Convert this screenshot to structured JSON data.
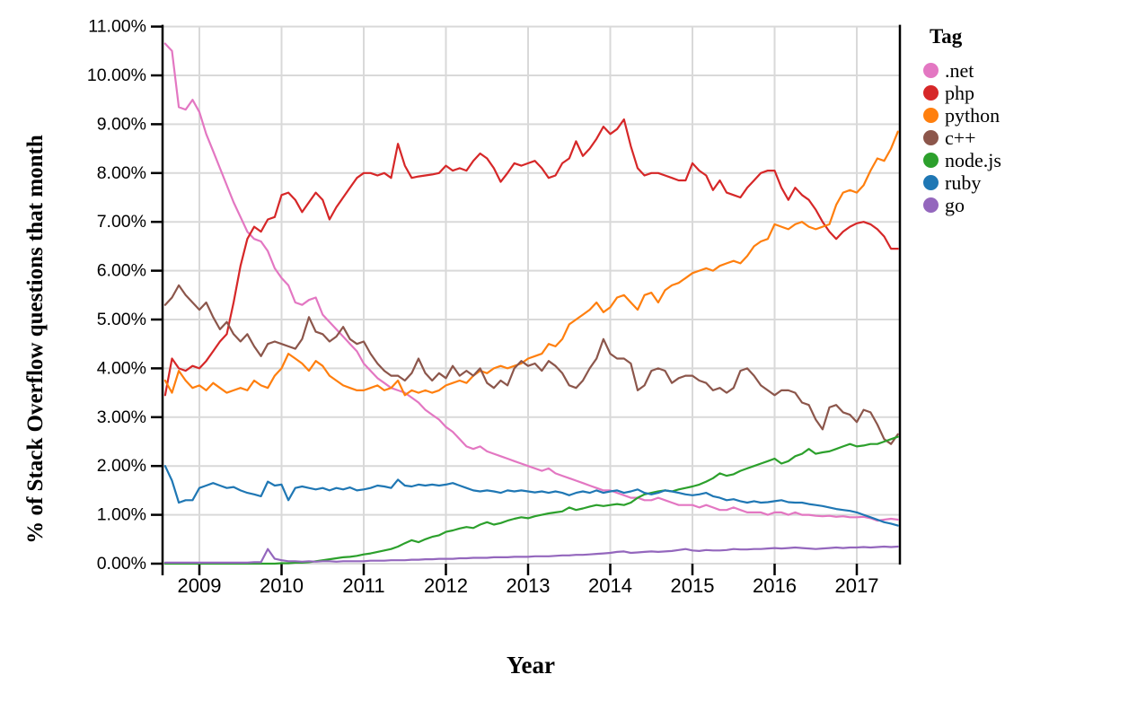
{
  "figure": {
    "y_axis_title": "% of Stack Overflow questions that month",
    "x_axis_title": "Year",
    "y_tick_labels": [
      "0.00%",
      "1.00%",
      "2.00%",
      "3.00%",
      "4.00%",
      "5.00%",
      "6.00%",
      "7.00%",
      "8.00%",
      "9.00%",
      "10.00%",
      "11.00%"
    ],
    "x_tick_labels": [
      "2009",
      "2010",
      "2011",
      "2012",
      "2013",
      "2014",
      "2015",
      "2016",
      "2017"
    ],
    "grid_color": "#d9d9d9",
    "axis_color": "#000000",
    "legend": {
      "title": "Tag",
      "items": [
        {
          "label": ".net",
          "color": "#e377c2"
        },
        {
          "label": "php",
          "color": "#d62728"
        },
        {
          "label": "python",
          "color": "#ff7f0e"
        },
        {
          "label": "c++",
          "color": "#8c564b"
        },
        {
          "label": "node.js",
          "color": "#2ca02c"
        },
        {
          "label": "ruby",
          "color": "#1f77b4"
        },
        {
          "label": "go",
          "color": "#9467bd"
        }
      ]
    }
  },
  "chart_data": {
    "type": "line",
    "title": "",
    "xlabel": "Year",
    "ylabel": "% of Stack Overflow questions that month",
    "xlim": [
      2008.583,
      2017.5
    ],
    "ylim": [
      0,
      11
    ],
    "grid": true,
    "legend_position": "right",
    "x_ticks": [
      2009,
      2010,
      2011,
      2012,
      2013,
      2014,
      2015,
      2016,
      2017
    ],
    "y_ticks": [
      0,
      1,
      2,
      3,
      4,
      5,
      6,
      7,
      8,
      9,
      10,
      11
    ],
    "y_unit": "percent",
    "x_start_year": 2008.5833,
    "x_step_years": 0.083333,
    "x_note": "monthly values, Aug 2008 through Jul 2017",
    "series": [
      {
        "name": ".net",
        "color": "#e377c2",
        "values": [
          10.65,
          10.5,
          9.35,
          9.3,
          9.5,
          9.25,
          8.8,
          8.45,
          8.1,
          7.75,
          7.4,
          7.1,
          6.8,
          6.65,
          6.6,
          6.4,
          6.05,
          5.85,
          5.7,
          5.35,
          5.3,
          5.4,
          5.45,
          5.1,
          4.95,
          4.8,
          4.65,
          4.5,
          4.35,
          4.1,
          3.95,
          3.8,
          3.7,
          3.6,
          3.55,
          3.5,
          3.4,
          3.3,
          3.15,
          3.05,
          2.95,
          2.8,
          2.7,
          2.55,
          2.4,
          2.35,
          2.4,
          2.3,
          2.25,
          2.2,
          2.15,
          2.1,
          2.05,
          2.0,
          1.95,
          1.9,
          1.95,
          1.85,
          1.8,
          1.75,
          1.7,
          1.65,
          1.6,
          1.55,
          1.5,
          1.5,
          1.45,
          1.4,
          1.35,
          1.35,
          1.3,
          1.3,
          1.35,
          1.3,
          1.25,
          1.2,
          1.2,
          1.2,
          1.15,
          1.2,
          1.15,
          1.1,
          1.1,
          1.15,
          1.1,
          1.05,
          1.05,
          1.05,
          1.0,
          1.05,
          1.05,
          1.0,
          1.05,
          1.0,
          1.0,
          0.98,
          0.97,
          0.98,
          0.96,
          0.97,
          0.95,
          0.95,
          0.96,
          0.93,
          0.88,
          0.9,
          0.92,
          0.9
        ]
      },
      {
        "name": "php",
        "color": "#d62728",
        "values": [
          3.45,
          4.2,
          4.0,
          3.95,
          4.05,
          4.0,
          4.15,
          4.35,
          4.55,
          4.7,
          5.35,
          6.1,
          6.65,
          6.9,
          6.8,
          7.05,
          7.1,
          7.55,
          7.6,
          7.45,
          7.2,
          7.4,
          7.6,
          7.45,
          7.05,
          7.3,
          7.5,
          7.7,
          7.9,
          8.0,
          8.0,
          7.95,
          8.0,
          7.9,
          8.6,
          8.15,
          7.9,
          7.93,
          7.95,
          7.97,
          8.0,
          8.15,
          8.05,
          8.1,
          8.05,
          8.25,
          8.4,
          8.3,
          8.1,
          7.82,
          8.0,
          8.2,
          8.15,
          8.2,
          8.25,
          8.1,
          7.9,
          7.95,
          8.2,
          8.3,
          8.65,
          8.35,
          8.5,
          8.7,
          8.95,
          8.8,
          8.9,
          9.1,
          8.55,
          8.1,
          7.95,
          8.0,
          8.0,
          7.95,
          7.9,
          7.85,
          7.85,
          8.2,
          8.05,
          7.95,
          7.65,
          7.85,
          7.6,
          7.55,
          7.5,
          7.7,
          7.85,
          8.0,
          8.05,
          8.05,
          7.7,
          7.45,
          7.7,
          7.55,
          7.45,
          7.25,
          7.0,
          6.8,
          6.65,
          6.8,
          6.9,
          6.97,
          7.0,
          6.95,
          6.85,
          6.7,
          6.45,
          6.45
        ]
      },
      {
        "name": "python",
        "color": "#ff7f0e",
        "values": [
          3.75,
          3.5,
          3.95,
          3.75,
          3.6,
          3.65,
          3.55,
          3.7,
          3.6,
          3.5,
          3.55,
          3.6,
          3.55,
          3.75,
          3.65,
          3.6,
          3.85,
          4.0,
          4.3,
          4.2,
          4.1,
          3.95,
          4.15,
          4.05,
          3.85,
          3.75,
          3.65,
          3.6,
          3.55,
          3.55,
          3.6,
          3.65,
          3.55,
          3.6,
          3.75,
          3.45,
          3.55,
          3.5,
          3.55,
          3.5,
          3.55,
          3.65,
          3.7,
          3.75,
          3.7,
          3.85,
          3.95,
          3.9,
          4.0,
          4.05,
          4.0,
          4.05,
          4.1,
          4.2,
          4.25,
          4.3,
          4.5,
          4.45,
          4.6,
          4.9,
          5.0,
          5.1,
          5.2,
          5.35,
          5.15,
          5.25,
          5.45,
          5.5,
          5.35,
          5.2,
          5.5,
          5.55,
          5.35,
          5.6,
          5.7,
          5.75,
          5.85,
          5.95,
          6.0,
          6.05,
          6.0,
          6.1,
          6.15,
          6.2,
          6.15,
          6.3,
          6.5,
          6.6,
          6.65,
          6.95,
          6.9,
          6.85,
          6.95,
          7.0,
          6.9,
          6.85,
          6.9,
          6.95,
          7.35,
          7.6,
          7.65,
          7.6,
          7.75,
          8.05,
          8.3,
          8.25,
          8.5,
          8.85
        ]
      },
      {
        "name": "c++",
        "color": "#8c564b",
        "values": [
          5.3,
          5.45,
          5.7,
          5.5,
          5.35,
          5.2,
          5.35,
          5.05,
          4.8,
          4.95,
          4.7,
          4.55,
          4.7,
          4.45,
          4.25,
          4.5,
          4.55,
          4.5,
          4.45,
          4.4,
          4.6,
          5.05,
          4.75,
          4.7,
          4.55,
          4.65,
          4.85,
          4.6,
          4.5,
          4.55,
          4.3,
          4.1,
          3.95,
          3.85,
          3.85,
          3.75,
          3.9,
          4.2,
          3.9,
          3.75,
          3.9,
          3.8,
          4.05,
          3.85,
          3.95,
          3.85,
          4.0,
          3.7,
          3.6,
          3.75,
          3.65,
          4.0,
          4.15,
          4.05,
          4.1,
          3.95,
          4.15,
          4.05,
          3.9,
          3.65,
          3.6,
          3.75,
          4.0,
          4.2,
          4.6,
          4.3,
          4.2,
          4.2,
          4.1,
          3.55,
          3.65,
          3.95,
          4.0,
          3.95,
          3.7,
          3.8,
          3.85,
          3.85,
          3.75,
          3.7,
          3.55,
          3.6,
          3.5,
          3.6,
          3.95,
          4.0,
          3.85,
          3.65,
          3.55,
          3.45,
          3.55,
          3.55,
          3.5,
          3.3,
          3.25,
          2.95,
          2.75,
          3.2,
          3.25,
          3.1,
          3.05,
          2.9,
          3.15,
          3.1,
          2.85,
          2.55,
          2.45,
          2.65
        ]
      },
      {
        "name": "node.js",
        "color": "#2ca02c",
        "values": [
          0,
          0,
          0,
          0,
          0,
          0,
          0,
          0,
          0,
          0,
          0,
          0,
          0,
          0,
          0,
          0,
          0,
          0.01,
          0.01,
          0.02,
          0.02,
          0.03,
          0.05,
          0.07,
          0.09,
          0.11,
          0.13,
          0.14,
          0.16,
          0.19,
          0.21,
          0.24,
          0.27,
          0.3,
          0.35,
          0.42,
          0.48,
          0.44,
          0.5,
          0.55,
          0.58,
          0.65,
          0.68,
          0.72,
          0.75,
          0.73,
          0.8,
          0.85,
          0.8,
          0.83,
          0.88,
          0.92,
          0.95,
          0.93,
          0.97,
          1.0,
          1.03,
          1.05,
          1.07,
          1.15,
          1.1,
          1.13,
          1.17,
          1.2,
          1.18,
          1.2,
          1.22,
          1.2,
          1.25,
          1.35,
          1.42,
          1.45,
          1.48,
          1.5,
          1.48,
          1.52,
          1.55,
          1.58,
          1.62,
          1.68,
          1.75,
          1.85,
          1.8,
          1.83,
          1.9,
          1.95,
          2.0,
          2.05,
          2.1,
          2.15,
          2.05,
          2.1,
          2.2,
          2.25,
          2.35,
          2.25,
          2.28,
          2.3,
          2.35,
          2.4,
          2.45,
          2.4,
          2.42,
          2.45,
          2.45,
          2.5,
          2.55,
          2.6
        ]
      },
      {
        "name": "ruby",
        "color": "#1f77b4",
        "values": [
          2.0,
          1.7,
          1.25,
          1.3,
          1.3,
          1.55,
          1.6,
          1.65,
          1.6,
          1.55,
          1.57,
          1.5,
          1.45,
          1.42,
          1.38,
          1.68,
          1.6,
          1.62,
          1.3,
          1.55,
          1.58,
          1.55,
          1.52,
          1.55,
          1.5,
          1.55,
          1.52,
          1.56,
          1.5,
          1.52,
          1.55,
          1.6,
          1.58,
          1.55,
          1.72,
          1.6,
          1.58,
          1.62,
          1.6,
          1.62,
          1.6,
          1.62,
          1.65,
          1.6,
          1.55,
          1.5,
          1.48,
          1.5,
          1.48,
          1.45,
          1.5,
          1.48,
          1.5,
          1.48,
          1.46,
          1.48,
          1.45,
          1.48,
          1.45,
          1.4,
          1.45,
          1.48,
          1.45,
          1.5,
          1.45,
          1.48,
          1.5,
          1.45,
          1.48,
          1.52,
          1.45,
          1.42,
          1.45,
          1.5,
          1.48,
          1.45,
          1.42,
          1.4,
          1.42,
          1.45,
          1.38,
          1.35,
          1.3,
          1.32,
          1.28,
          1.25,
          1.28,
          1.25,
          1.26,
          1.28,
          1.3,
          1.26,
          1.25,
          1.25,
          1.22,
          1.2,
          1.18,
          1.15,
          1.12,
          1.1,
          1.08,
          1.05,
          1.0,
          0.95,
          0.9,
          0.85,
          0.82,
          0.78
        ]
      },
      {
        "name": "go",
        "color": "#9467bd",
        "values": [
          0.02,
          0.02,
          0.02,
          0.02,
          0.02,
          0.02,
          0.02,
          0.02,
          0.02,
          0.02,
          0.02,
          0.02,
          0.02,
          0.03,
          0.03,
          0.3,
          0.1,
          0.07,
          0.05,
          0.05,
          0.04,
          0.05,
          0.04,
          0.05,
          0.05,
          0.04,
          0.05,
          0.05,
          0.05,
          0.05,
          0.06,
          0.06,
          0.06,
          0.07,
          0.07,
          0.07,
          0.08,
          0.08,
          0.09,
          0.09,
          0.1,
          0.1,
          0.1,
          0.11,
          0.11,
          0.12,
          0.12,
          0.12,
          0.13,
          0.13,
          0.13,
          0.14,
          0.14,
          0.14,
          0.15,
          0.15,
          0.15,
          0.16,
          0.17,
          0.17,
          0.18,
          0.18,
          0.19,
          0.2,
          0.21,
          0.22,
          0.24,
          0.25,
          0.22,
          0.23,
          0.24,
          0.25,
          0.24,
          0.25,
          0.26,
          0.28,
          0.3,
          0.27,
          0.26,
          0.28,
          0.27,
          0.27,
          0.28,
          0.3,
          0.29,
          0.29,
          0.3,
          0.3,
          0.31,
          0.32,
          0.31,
          0.32,
          0.33,
          0.32,
          0.31,
          0.3,
          0.31,
          0.32,
          0.33,
          0.32,
          0.33,
          0.33,
          0.34,
          0.33,
          0.34,
          0.35,
          0.34,
          0.35
        ]
      }
    ]
  }
}
